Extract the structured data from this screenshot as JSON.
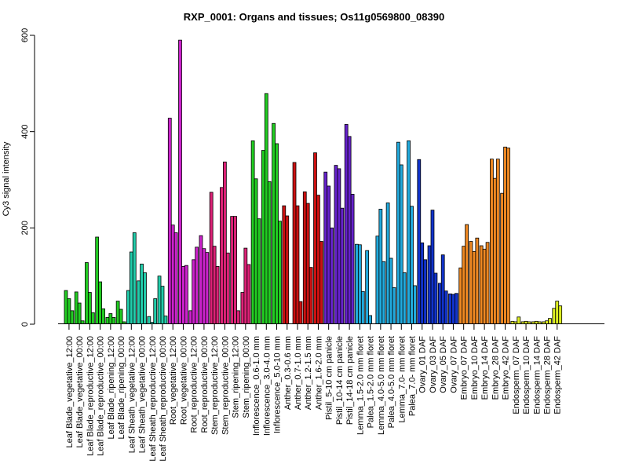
{
  "chart_data": {
    "type": "bar",
    "title": "RXP_0001: Organs and tissues; Os11g0569800_08390",
    "ylabel": "Cy3 signal intensity",
    "xlabel": "",
    "ylim": [
      0,
      600
    ],
    "yticks": [
      0,
      200,
      400,
      600
    ],
    "groups": [
      {
        "label": "Leaf Blade_vegetative_12:00",
        "color": "#22cc22",
        "values": [
          70,
          53,
          28
        ]
      },
      {
        "label": "Leaf Blade_vegetative_00:00",
        "color": "#22cc22",
        "values": [
          67,
          44,
          7
        ]
      },
      {
        "label": "Leaf Blade_reproductive_12:00",
        "color": "#22cc22",
        "values": [
          128,
          66,
          24
        ]
      },
      {
        "label": "Leaf Blade_reproductive_00:00",
        "color": "#22cc22",
        "values": [
          181,
          88,
          32
        ]
      },
      {
        "label": "Leaf Blade_ripening_12:00",
        "color": "#22cc22",
        "values": [
          14,
          22,
          14
        ]
      },
      {
        "label": "Leaf Blade_ripening_00:00",
        "color": "#22cc22",
        "values": [
          48,
          31,
          5
        ]
      },
      {
        "label": "Leaf Sheath_vegetative_12:00",
        "color": "#22ccaa",
        "values": [
          70,
          150,
          190
        ]
      },
      {
        "label": "Leaf Sheath_vegetative_00:00",
        "color": "#22ccaa",
        "values": [
          90,
          125,
          107
        ]
      },
      {
        "label": "Leaf Sheath_reproductive_12:00",
        "color": "#22ccaa",
        "values": [
          16,
          4,
          53
        ]
      },
      {
        "label": "Leaf Sheath_reproductive_00:00",
        "color": "#22ccaa",
        "values": [
          100,
          79,
          17
        ]
      },
      {
        "label": "Root_vegetative_12:00",
        "color": "#cc22cc",
        "values": [
          428,
          206,
          190
        ]
      },
      {
        "label": "Root_vegetative_00:00",
        "color": "#cc22cc",
        "values": [
          590,
          120,
          122
        ]
      },
      {
        "label": "Root_reproductive_12:00",
        "color": "#cc22cc",
        "values": [
          28,
          134,
          160
        ]
      },
      {
        "label": "Root_reproductive_00:00",
        "color": "#cc22cc",
        "values": [
          184,
          157,
          149
        ]
      },
      {
        "label": "Stem_reproductive_12:00",
        "color": "#dd2277",
        "values": [
          274,
          162,
          120
        ]
      },
      {
        "label": "Stem_reproductive_00:00",
        "color": "#dd2277",
        "values": [
          284,
          337,
          148
        ]
      },
      {
        "label": "Stem_ripening_12:00",
        "color": "#dd2277",
        "values": [
          224,
          224,
          28
        ]
      },
      {
        "label": "Stem_ripening_00:00",
        "color": "#dd2277",
        "values": [
          66,
          158,
          124
        ]
      },
      {
        "label": "Inflorescence_0.6-1.0 mm",
        "color": "#22cc22",
        "values": [
          381,
          302,
          219
        ]
      },
      {
        "label": "Inflorescence_3.0-4.0 mm",
        "color": "#22cc22",
        "values": [
          361,
          479,
          296
        ]
      },
      {
        "label": "Inflorescence_5.0-10 mm",
        "color": "#22cc22",
        "values": [
          417,
          375,
          214
        ]
      },
      {
        "label": "Anther_0.3-0.6 mm",
        "color": "#cc1111",
        "values": [
          246,
          225
        ]
      },
      {
        "label": "Anther_0.7-1.0 mm",
        "color": "#cc1111",
        "values": [
          336,
          246,
          47
        ]
      },
      {
        "label": "Anther_1.2-1.5 mm",
        "color": "#cc1111",
        "values": [
          275,
          251,
          118
        ]
      },
      {
        "label": "Anther_1.6-2.0 mm",
        "color": "#cc1111",
        "values": [
          356,
          268,
          172
        ]
      },
      {
        "label": "Pistil_5-10 cm panicle",
        "color": "#6622cc",
        "values": [
          316,
          287,
          200
        ]
      },
      {
        "label": "Pistil_10-14 cm panicle",
        "color": "#6622cc",
        "values": [
          330,
          323,
          241
        ]
      },
      {
        "label": "Pistil_14-18 cm panicle",
        "color": "#6622cc",
        "values": [
          415,
          390,
          270
        ]
      },
      {
        "label": "Lemma_1.5-2.0 mm floret",
        "color": "#22aadd",
        "values": [
          166,
          165,
          68
        ]
      },
      {
        "label": "Palea_1.5-2.0 mm floret",
        "color": "#22aadd",
        "values": [
          153,
          18
        ]
      },
      {
        "label": "Lemma_4.0-5.0 mm floret",
        "color": "#22aadd",
        "values": [
          183,
          239,
          130
        ]
      },
      {
        "label": "Palea_4.0-5.0 mm floret",
        "color": "#22aadd",
        "values": [
          252,
          137,
          76
        ]
      },
      {
        "label": "Lemma_7.0- mm floret",
        "color": "#22aadd",
        "values": [
          378,
          331,
          107
        ]
      },
      {
        "label": "Palea_7.0- mm floret",
        "color": "#22aadd",
        "values": [
          381,
          245,
          80
        ]
      },
      {
        "label": "Ovary_01 DAF",
        "color": "#1133cc",
        "values": [
          342,
          169,
          134
        ]
      },
      {
        "label": "Ovary_03 DAF",
        "color": "#1133cc",
        "values": [
          163,
          237,
          106
        ]
      },
      {
        "label": "Ovary_05 DAF",
        "color": "#1133cc",
        "values": [
          85,
          144,
          69
        ]
      },
      {
        "label": "Ovary_07 DAF",
        "color": "#1133cc",
        "values": [
          63,
          62,
          64
        ]
      },
      {
        "label": "Embryo_07 DAF",
        "color": "#ee8822",
        "values": [
          117,
          162,
          207
        ]
      },
      {
        "label": "Embryo_10 DAF",
        "color": "#ee8822",
        "values": [
          172,
          151,
          179
        ]
      },
      {
        "label": "Embryo_14 DAF",
        "color": "#ee8822",
        "values": [
          163,
          156,
          170
        ]
      },
      {
        "label": "Embryo_28 DAF",
        "color": "#ee8822",
        "values": [
          343,
          303,
          343
        ]
      },
      {
        "label": "Embryo_42 DAF",
        "color": "#ee8822",
        "values": [
          272,
          368,
          366
        ]
      },
      {
        "label": "Endosperm_07 DAF",
        "color": "#ddee22",
        "values": [
          6,
          5,
          15
        ]
      },
      {
        "label": "Endosperm_10 DAF",
        "color": "#ddee22",
        "values": [
          5,
          6,
          5
        ]
      },
      {
        "label": "Endosperm_14 DAF",
        "color": "#ddee22",
        "values": [
          5,
          6,
          5
        ]
      },
      {
        "label": "Endosperm_28 DAF",
        "color": "#ddee22",
        "values": [
          5,
          7,
          12
        ]
      },
      {
        "label": "Endosperm_42 DAF",
        "color": "#ddee22",
        "values": [
          33,
          48,
          38
        ]
      }
    ]
  }
}
